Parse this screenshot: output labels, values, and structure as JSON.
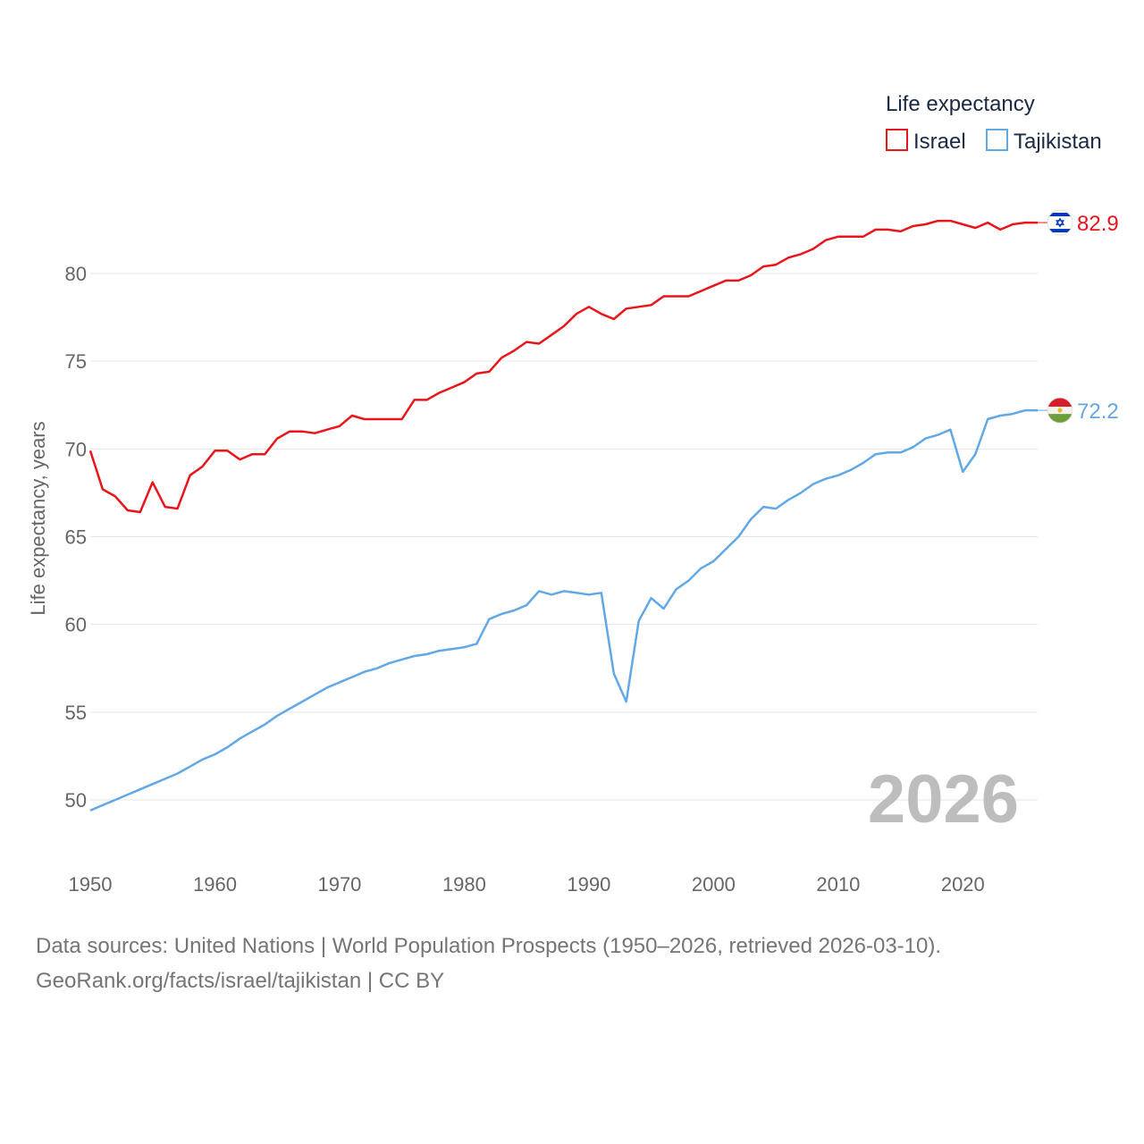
{
  "chart_data": {
    "type": "line",
    "title": "Life expectancy",
    "xlabel": "",
    "ylabel": "Life expectancy, years",
    "xlim": [
      1950,
      2026
    ],
    "ylim": [
      47,
      85
    ],
    "x_ticks": [
      1950,
      1960,
      1970,
      1980,
      1990,
      2000,
      2010,
      2020
    ],
    "y_ticks": [
      50,
      55,
      60,
      65,
      70,
      75,
      80
    ],
    "gridlines": "horizontal",
    "legend_position": "top-right",
    "year_display": "2026",
    "x": [
      1950,
      1951,
      1952,
      1953,
      1954,
      1955,
      1956,
      1957,
      1958,
      1959,
      1960,
      1961,
      1962,
      1963,
      1964,
      1965,
      1966,
      1967,
      1968,
      1969,
      1970,
      1971,
      1972,
      1973,
      1974,
      1975,
      1976,
      1977,
      1978,
      1979,
      1980,
      1981,
      1982,
      1983,
      1984,
      1985,
      1986,
      1987,
      1988,
      1989,
      1990,
      1991,
      1992,
      1993,
      1994,
      1995,
      1996,
      1997,
      1998,
      1999,
      2000,
      2001,
      2002,
      2003,
      2004,
      2005,
      2006,
      2007,
      2008,
      2009,
      2010,
      2011,
      2012,
      2013,
      2014,
      2015,
      2016,
      2017,
      2018,
      2019,
      2020,
      2021,
      2022,
      2023,
      2024,
      2025,
      2026
    ],
    "series": [
      {
        "name": "Israel",
        "color": "#e8161b",
        "end_label": "82.9",
        "flag": "israel-flag",
        "values": [
          69.9,
          67.7,
          67.3,
          66.5,
          66.4,
          68.1,
          66.7,
          66.6,
          68.5,
          69.0,
          69.9,
          69.9,
          69.4,
          69.7,
          69.7,
          70.6,
          71.0,
          71.0,
          70.9,
          71.1,
          71.3,
          71.9,
          71.7,
          71.7,
          71.7,
          71.7,
          72.8,
          72.8,
          73.2,
          73.5,
          73.8,
          74.3,
          74.4,
          75.2,
          75.6,
          76.1,
          76.0,
          76.5,
          77.0,
          77.7,
          78.1,
          77.7,
          77.4,
          78.0,
          78.1,
          78.2,
          78.7,
          78.7,
          78.7,
          79.0,
          79.3,
          79.6,
          79.6,
          79.9,
          80.4,
          80.5,
          80.9,
          81.1,
          81.4,
          81.9,
          82.1,
          82.1,
          82.1,
          82.5,
          82.5,
          82.4,
          82.7,
          82.8,
          83.0,
          83.0,
          82.8,
          82.6,
          82.9,
          82.5,
          82.8,
          82.9,
          82.9
        ]
      },
      {
        "name": "Tajikistan",
        "color": "#62a8e5",
        "end_label": "72.2",
        "flag": "tajikistan-flag",
        "values": [
          49.4,
          49.7,
          50.0,
          50.3,
          50.6,
          50.9,
          51.2,
          51.5,
          51.9,
          52.3,
          52.6,
          53.0,
          53.5,
          53.9,
          54.3,
          54.8,
          55.2,
          55.6,
          56.0,
          56.4,
          56.7,
          57.0,
          57.3,
          57.5,
          57.8,
          58.0,
          58.2,
          58.3,
          58.5,
          58.6,
          58.7,
          58.9,
          60.3,
          60.6,
          60.8,
          61.1,
          61.9,
          61.7,
          61.9,
          61.8,
          61.7,
          61.8,
          57.2,
          55.6,
          60.2,
          61.5,
          60.9,
          62.0,
          62.5,
          63.2,
          63.6,
          64.3,
          65.0,
          66.0,
          66.7,
          66.6,
          67.1,
          67.5,
          68.0,
          68.3,
          68.5,
          68.8,
          69.2,
          69.7,
          69.8,
          69.8,
          70.1,
          70.6,
          70.8,
          71.1,
          68.7,
          69.7,
          71.7,
          71.9,
          72.0,
          72.2,
          72.2
        ]
      }
    ]
  },
  "footer": {
    "sources": "Data sources: United Nations | World Population Prospects (1950–2026, retrieved 2026-03-10).",
    "credit": "GeoRank.org/facts/israel/tajikistan | CC BY"
  }
}
